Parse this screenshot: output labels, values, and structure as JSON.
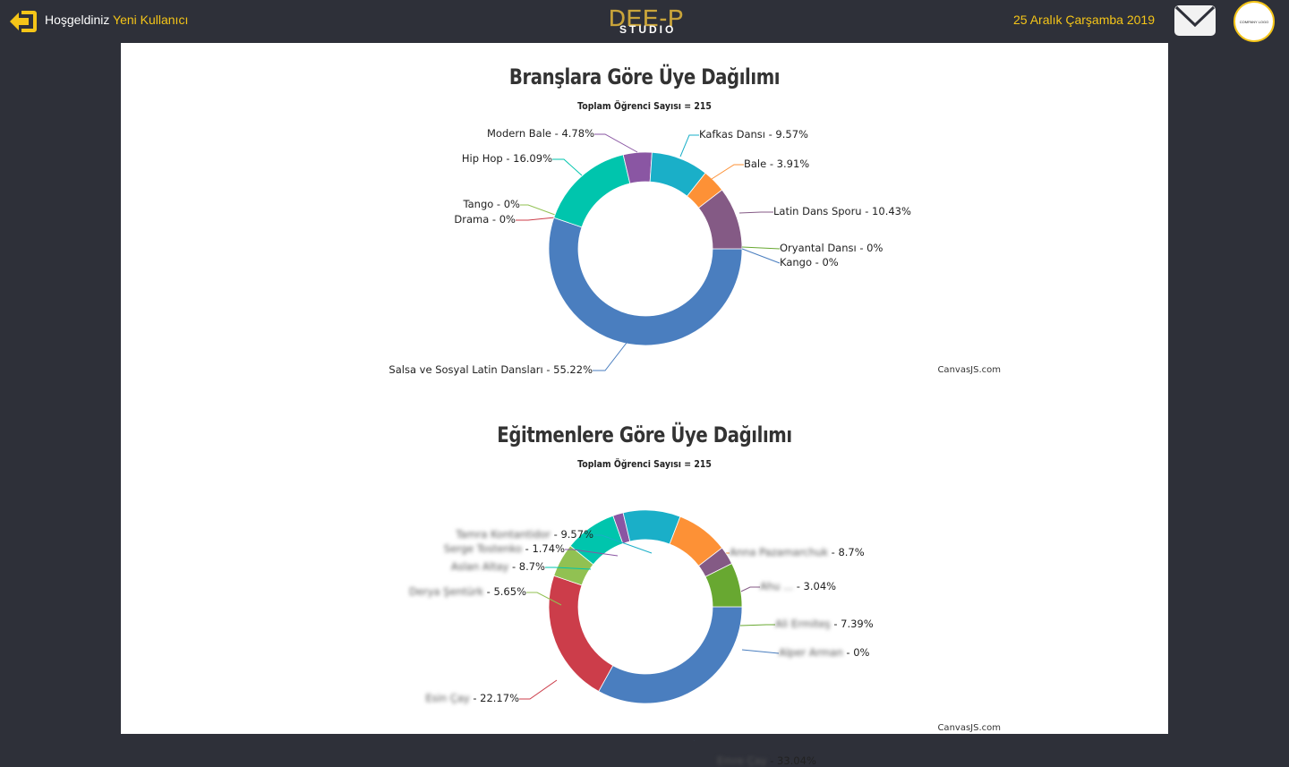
{
  "header": {
    "welcome": "Hoşgeldiniz",
    "user_name": "Yeni Kullanıcı",
    "logo_big": "DEE-P",
    "logo_small": "STUDIO",
    "date": "25 Aralık Çarşamba 2019",
    "company_logo": "COMPANY LOGO",
    "accent_color": "#f5c518"
  },
  "credit": "CanvasJS.com",
  "chart_data": [
    {
      "type": "pie",
      "title": "Branşlara Göre Üye Dağılımı",
      "subtitle": "Toplam Öğrenci Sayısı = 215",
      "categories": [
        "Salsa ve Sosyal Latin Dansları",
        "Drama",
        "Tango",
        "Hip Hop",
        "Modern Bale",
        "Kafkas Dansı",
        "Bale",
        "Latin Dans Sporu",
        "Oryantal Dansı",
        "Kango"
      ],
      "values": [
        55.22,
        0,
        0,
        16.09,
        4.78,
        9.57,
        3.91,
        10.43,
        0,
        0
      ],
      "colors": [
        "#4a7ebf",
        "#cc3d4a",
        "#91c152",
        "#00c5ad",
        "#8a56a3",
        "#1aafc8",
        "#fd9136",
        "#845a85",
        "#68a831",
        "#4a7ebf"
      ]
    },
    {
      "type": "pie",
      "title": "Eğitmenlere Göre Üye Dağılımı",
      "subtitle": "Toplam Öğrenci Sayısı = 215",
      "categories": [
        "Emre Çay",
        "Esin Çay",
        "Derya Şentürk",
        "Aslan Altay",
        "Serge Tostenko",
        "Tamra Kontantidor",
        "Anna Pazamarchuk",
        "Ahu ...",
        "Ali Ermiteş",
        "Alper Arman"
      ],
      "values": [
        33.04,
        22.17,
        5.65,
        8.7,
        1.74,
        9.57,
        8.7,
        3.04,
        7.39,
        0
      ],
      "colors": [
        "#4a7ebf",
        "#cc3d4a",
        "#91c152",
        "#00c5ad",
        "#8a56a3",
        "#1aafc8",
        "#fd9136",
        "#845a85",
        "#68a831",
        "#4a7ebf"
      ]
    }
  ]
}
